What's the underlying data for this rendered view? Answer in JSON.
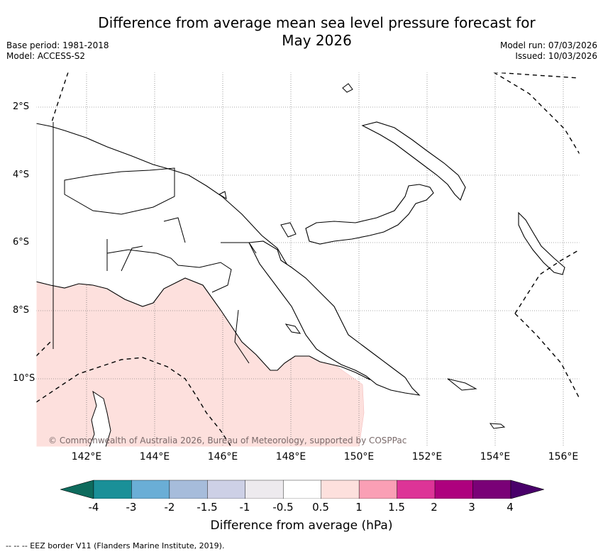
{
  "title_line1": "Difference from average mean sea level pressure forecast for",
  "title_line2": "May 2026",
  "meta_left": [
    "Base period: 1981-2018",
    "Model: ACCESS-S2"
  ],
  "meta_right": [
    "Model run: 07/03/2026",
    "Issued: 10/03/2026"
  ],
  "x_ticks": [
    "142°E",
    "144°E",
    "146°E",
    "148°E",
    "150°E",
    "152°E",
    "154°E",
    "156°E"
  ],
  "y_ticks": [
    "2°S",
    "4°S",
    "6°S",
    "8°S",
    "10°S"
  ],
  "copyright": "© Commonwealth of Australia 2026, Bureau of Meteorology, supported by COSPPac",
  "colorbar": {
    "title": "Difference from average (hPa)",
    "labels": [
      "-4",
      "-3",
      "-2",
      "-1.5",
      "-1",
      "-0.5",
      "0.5",
      "1",
      "1.5",
      "2",
      "3",
      "4"
    ],
    "colors": [
      "#0e6b5d",
      "#1a9098",
      "#6aaed6",
      "#a6bcdb",
      "#cdd0e6",
      "#edeaee",
      "#ffffff",
      "#fde0dd",
      "#fa9fb5",
      "#dd3497",
      "#ae017e",
      "#7a0177",
      "#49006a"
    ]
  },
  "eez_note": "-- -- -- EEZ border V11 (Flanders Marine Institute, 2019)."
}
